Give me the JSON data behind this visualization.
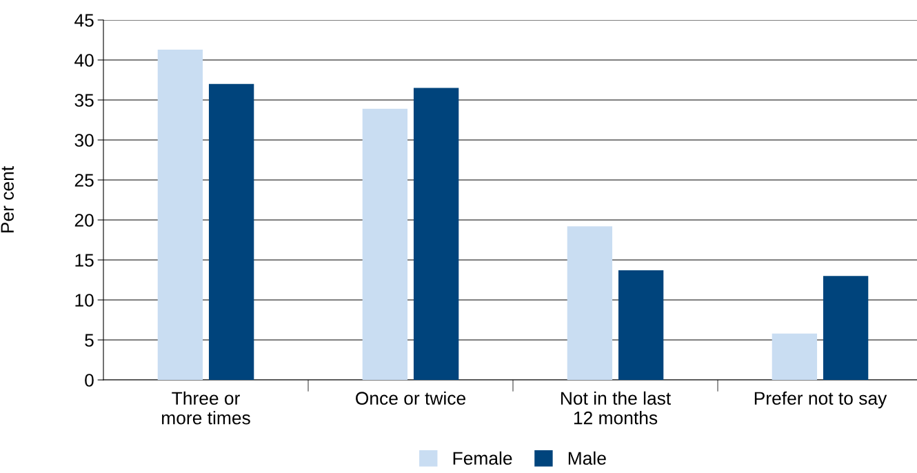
{
  "chart_data": {
    "type": "bar",
    "ylabel": "Per cent",
    "categories": [
      "Three or\nmore times",
      "Once or twice",
      "Not in the last\n12 months",
      "Prefer not to say"
    ],
    "series": [
      {
        "name": "Female",
        "color": "#c9ddf2",
        "values": [
          41.3,
          33.9,
          19.2,
          5.8
        ]
      },
      {
        "name": "Male",
        "color": "#00447c",
        "values": [
          37.0,
          36.5,
          13.7,
          13.0
        ]
      }
    ],
    "ylim": [
      0,
      45
    ],
    "yticks": [
      0,
      5,
      10,
      15,
      20,
      25,
      30,
      35,
      40,
      45
    ],
    "grid": "y",
    "legend": "bottom"
  }
}
